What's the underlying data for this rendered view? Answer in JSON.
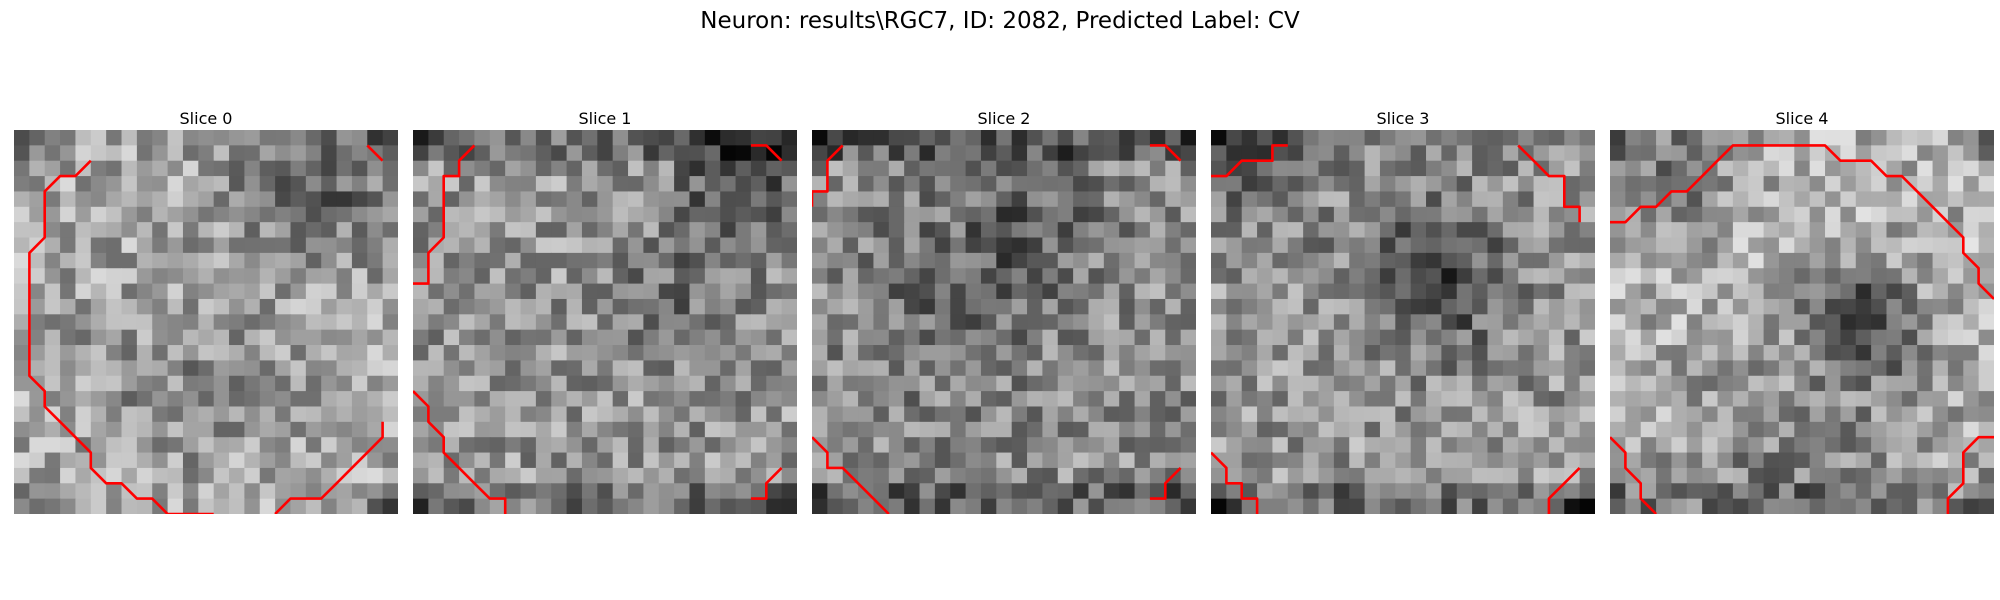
{
  "figure": {
    "title": "Neuron: results\\RGC7, ID: 2082, Predicted Label: CV",
    "grid_cells": 25,
    "contour_color": "#ff0000",
    "cmap": "gray"
  },
  "panels": [
    {
      "title": "Slice 0",
      "contours": [
        [
          [
            5,
            2
          ],
          [
            4,
            3
          ],
          [
            3,
            3
          ],
          [
            2,
            4
          ],
          [
            2,
            6
          ],
          [
            2,
            7
          ],
          [
            2,
            7
          ],
          [
            1,
            8
          ],
          [
            1,
            15
          ],
          [
            1,
            16
          ],
          [
            2,
            17
          ],
          [
            2,
            18
          ],
          [
            3,
            19
          ],
          [
            4,
            20
          ],
          [
            4,
            20
          ],
          [
            5,
            21
          ],
          [
            5,
            22
          ],
          [
            6,
            23
          ],
          [
            7,
            23
          ],
          [
            8,
            24
          ],
          [
            9,
            24
          ],
          [
            9,
            24
          ],
          [
            10,
            25
          ],
          [
            12,
            25
          ],
          [
            13,
            25
          ],
          [
            13,
            25
          ]
        ],
        [
          [
            17,
            25
          ],
          [
            17,
            25
          ],
          [
            18,
            24
          ],
          [
            19,
            24
          ],
          [
            20,
            24
          ],
          [
            20,
            24
          ],
          [
            21,
            23
          ],
          [
            22,
            22
          ],
          [
            23,
            21
          ],
          [
            24,
            20
          ],
          [
            24,
            20
          ],
          [
            24,
            19
          ]
        ],
        [
          [
            24,
            2
          ],
          [
            24,
            2
          ],
          [
            23,
            1
          ]
        ]
      ]
    },
    {
      "title": "Slice 1",
      "contours": [
        [
          [
            4,
            1
          ],
          [
            3,
            2
          ],
          [
            3,
            3
          ],
          [
            2,
            3
          ],
          [
            2,
            5
          ],
          [
            2,
            7
          ],
          [
            2,
            7
          ],
          [
            1,
            8
          ],
          [
            1,
            9
          ],
          [
            1,
            10
          ],
          [
            0,
            10
          ]
        ],
        [
          [
            0,
            17
          ],
          [
            0,
            17
          ],
          [
            1,
            18
          ],
          [
            1,
            19
          ],
          [
            2,
            20
          ],
          [
            2,
            21
          ],
          [
            3,
            22
          ],
          [
            4,
            23
          ],
          [
            5,
            24
          ],
          [
            6,
            24
          ],
          [
            6,
            25
          ]
        ],
        [
          [
            24,
            2
          ],
          [
            24,
            2
          ],
          [
            23,
            1
          ],
          [
            22,
            1
          ]
        ],
        [
          [
            24,
            22
          ],
          [
            24,
            22
          ],
          [
            23,
            23
          ],
          [
            23,
            24
          ],
          [
            22,
            24
          ],
          [
            22,
            24
          ]
        ]
      ]
    },
    {
      "title": "Slice 2",
      "contours": [
        [
          [
            2,
            1
          ],
          [
            1,
            2
          ],
          [
            1,
            3
          ],
          [
            1,
            4
          ],
          [
            0,
            4
          ],
          [
            0,
            5
          ]
        ],
        [
          [
            0,
            20
          ],
          [
            0,
            20
          ],
          [
            1,
            21
          ],
          [
            1,
            22
          ],
          [
            2,
            22
          ],
          [
            3,
            23
          ],
          [
            3,
            23
          ],
          [
            4,
            24
          ],
          [
            5,
            25
          ]
        ],
        [
          [
            24,
            2
          ],
          [
            24,
            2
          ],
          [
            23,
            1
          ],
          [
            22,
            1
          ]
        ],
        [
          [
            24,
            22
          ],
          [
            24,
            22
          ],
          [
            23,
            23
          ],
          [
            23,
            24
          ],
          [
            22,
            24
          ],
          [
            22,
            24
          ]
        ]
      ]
    },
    {
      "title": "Slice 3",
      "contours": [
        [
          [
            5,
            1
          ],
          [
            4,
            1
          ],
          [
            4,
            2
          ],
          [
            3,
            2
          ],
          [
            2,
            2
          ],
          [
            2,
            2
          ],
          [
            1,
            3
          ],
          [
            0,
            3
          ]
        ],
        [
          [
            20,
            1
          ],
          [
            20,
            1
          ],
          [
            21,
            2
          ],
          [
            22,
            3
          ],
          [
            23,
            3
          ],
          [
            23,
            4
          ],
          [
            23,
            5
          ],
          [
            24,
            5
          ],
          [
            24,
            6
          ]
        ],
        [
          [
            0,
            21
          ],
          [
            0,
            21
          ],
          [
            1,
            22
          ],
          [
            1,
            23
          ],
          [
            2,
            23
          ],
          [
            2,
            24
          ],
          [
            3,
            24
          ],
          [
            3,
            25
          ]
        ],
        [
          [
            24,
            22
          ],
          [
            24,
            22
          ],
          [
            23,
            23
          ],
          [
            22,
            24
          ],
          [
            22,
            25
          ]
        ]
      ]
    },
    {
      "title": "Slice 4",
      "contours": [
        [
          [
            0,
            6
          ],
          [
            1,
            6
          ],
          [
            2,
            5
          ],
          [
            3,
            5
          ],
          [
            4,
            4
          ],
          [
            5,
            4
          ],
          [
            6,
            3
          ],
          [
            6,
            3
          ],
          [
            7,
            2
          ],
          [
            7,
            2
          ],
          [
            8,
            1
          ],
          [
            9,
            1
          ],
          [
            14,
            1
          ],
          [
            15,
            2
          ],
          [
            16,
            2
          ],
          [
            17,
            2
          ],
          [
            18,
            3
          ],
          [
            19,
            3
          ],
          [
            20,
            4
          ],
          [
            21,
            5
          ],
          [
            22,
            6
          ],
          [
            23,
            7
          ],
          [
            23,
            8
          ],
          [
            23,
            8
          ],
          [
            24,
            9
          ],
          [
            24,
            10
          ],
          [
            25,
            11
          ],
          [
            25,
            11
          ]
        ],
        [
          [
            0,
            20
          ],
          [
            0,
            20
          ],
          [
            1,
            21
          ],
          [
            1,
            22
          ],
          [
            2,
            23
          ],
          [
            2,
            24
          ],
          [
            3,
            25
          ]
        ],
        [
          [
            25,
            20
          ],
          [
            24,
            20
          ],
          [
            23,
            21
          ],
          [
            23,
            23
          ],
          [
            22,
            24
          ],
          [
            22,
            25
          ]
        ]
      ]
    }
  ]
}
